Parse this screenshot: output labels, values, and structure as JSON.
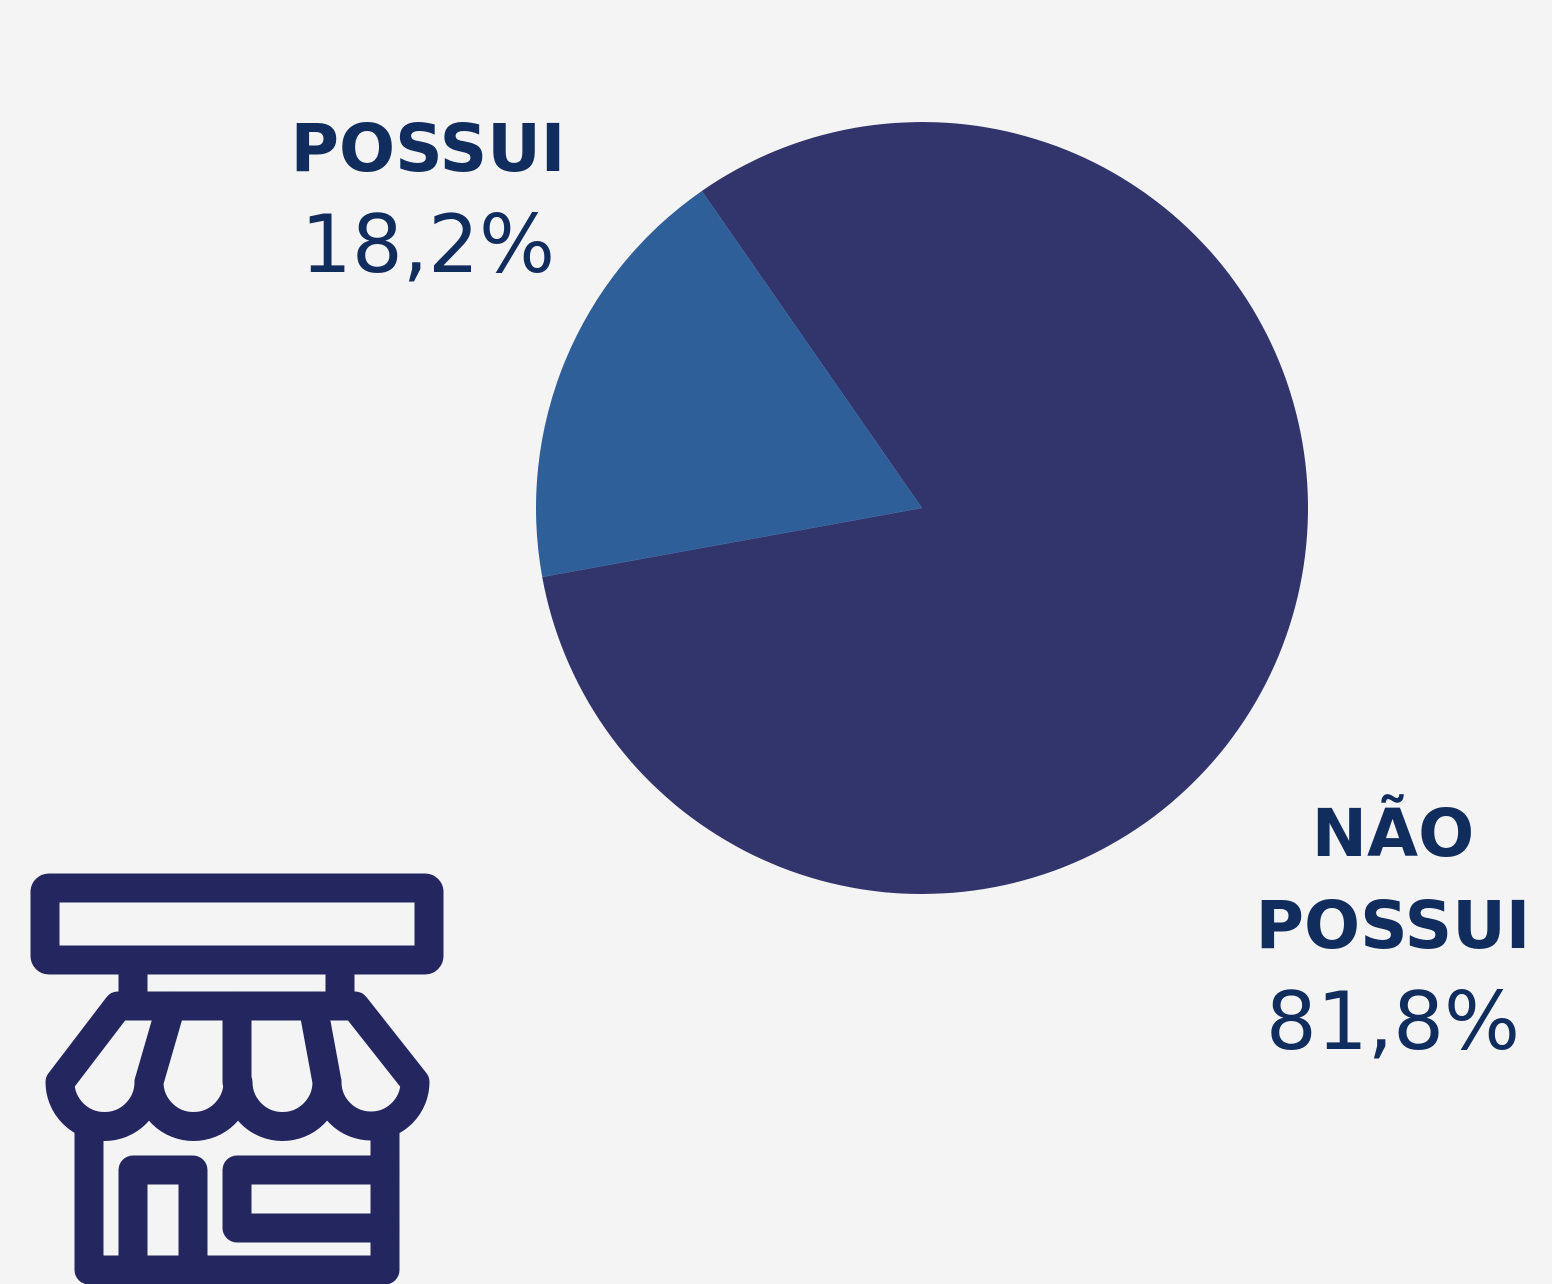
{
  "chart_data": {
    "type": "pie",
    "categories": [
      "POSSUI",
      "NÃO POSSUI"
    ],
    "values": [
      18.2,
      81.8
    ],
    "value_labels": [
      "18,2%",
      "81,8%"
    ],
    "colors": [
      "#2f5f98",
      "#31356c"
    ]
  }
}
